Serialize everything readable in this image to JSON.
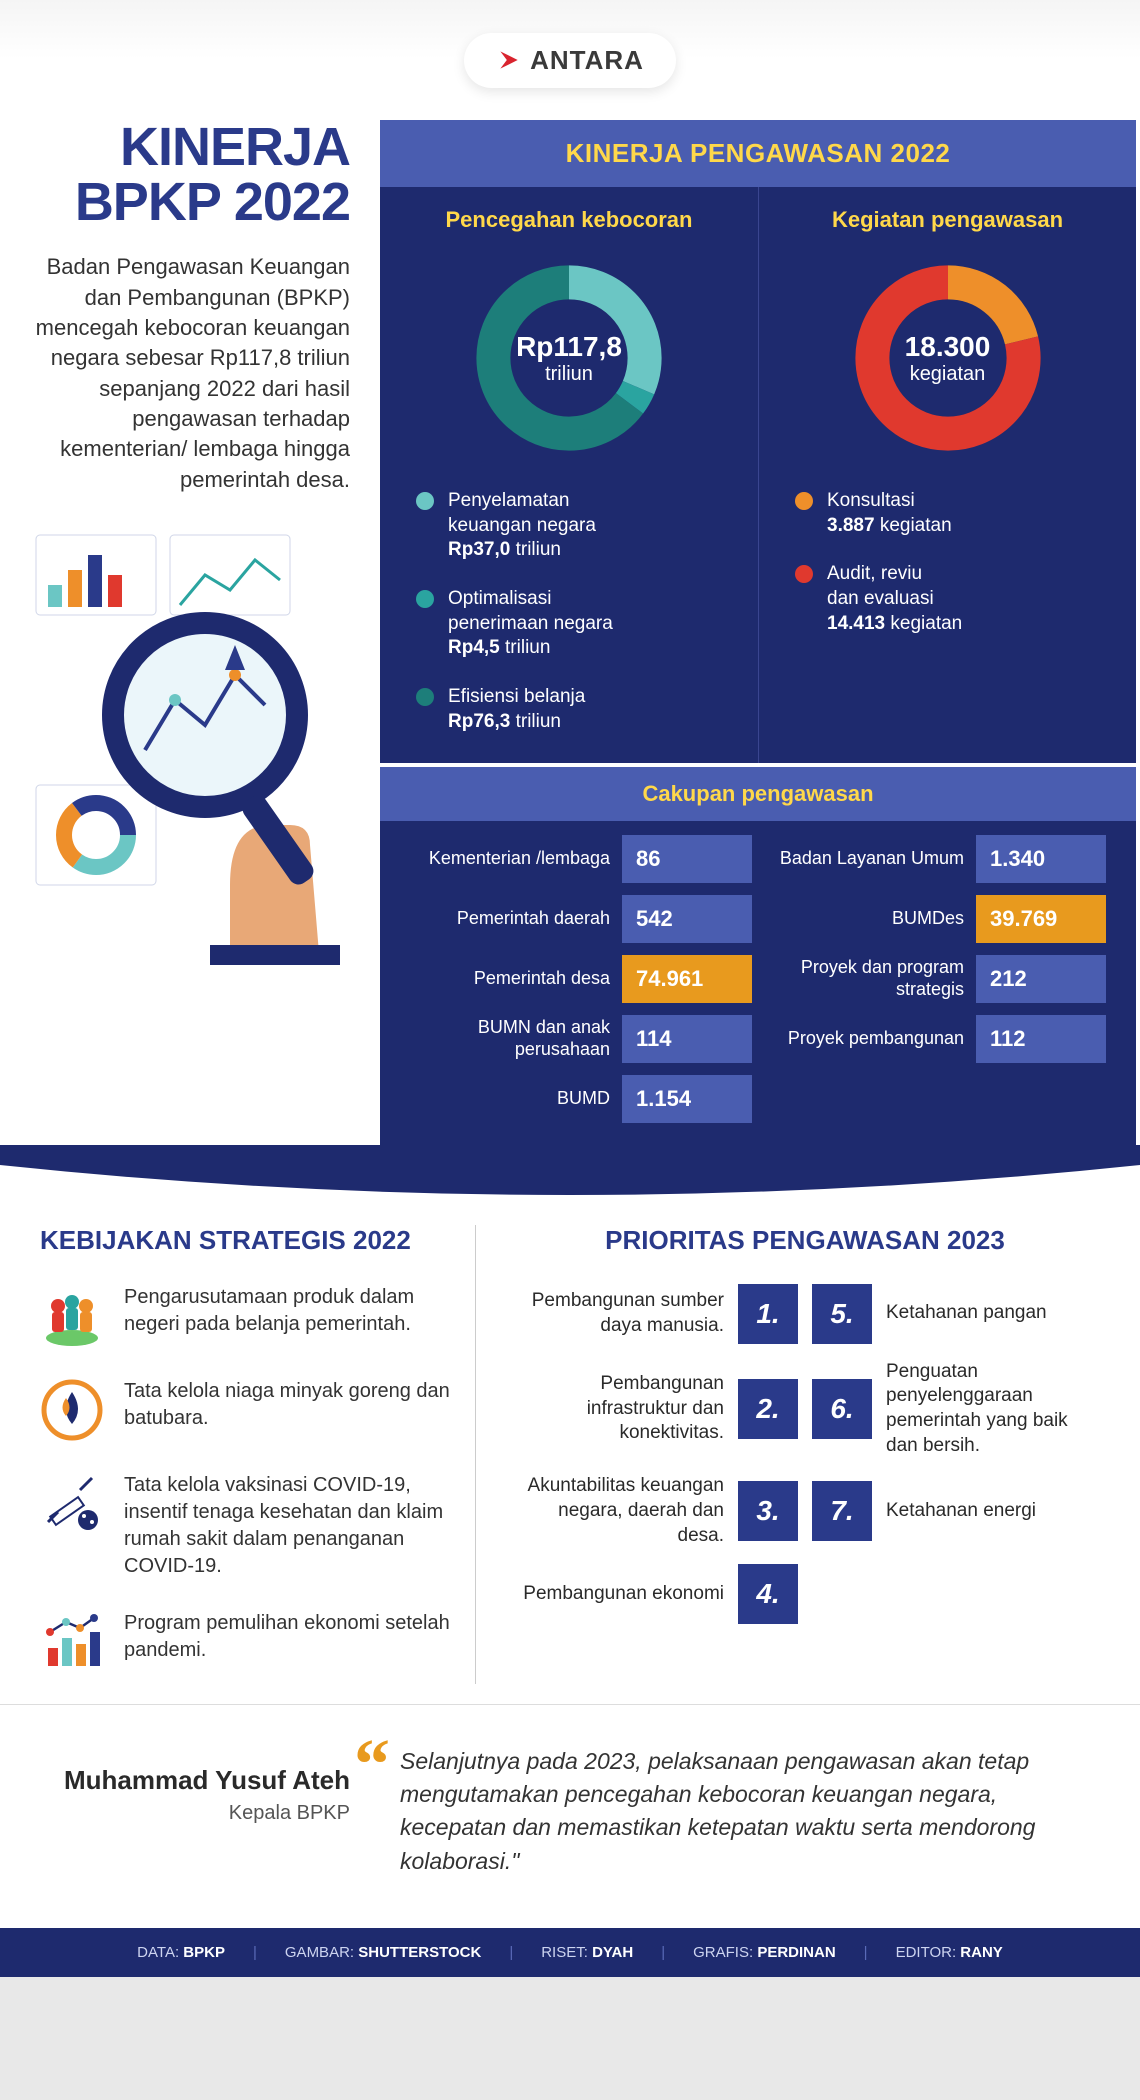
{
  "logo": {
    "brand": "ANTARA",
    "mark_color": "#d9232e"
  },
  "colors": {
    "deep_blue": "#1e2a6e",
    "mid_blue": "#4a5db0",
    "accent_blue": "#2a3a8a",
    "yellow": "#ffd84a",
    "orange": "#e89a1e",
    "teal_light": "#6bc6c4",
    "teal_mid": "#2aa4a0",
    "teal_dark": "#1d7e7a",
    "red": "#e0392e",
    "donut_orange": "#ee8f2a"
  },
  "header": {
    "title_l1": "KINERJA",
    "title_l2": "BPKP 2022",
    "intro": "Badan Pengawasan Keuangan dan Pembangunan (BPKP) mencegah kebocoran keuangan negara sebesar Rp117,8 triliun sepanjang 2022 dari hasil pengawasan terhadap kementerian/ lembaga hingga pemerintah desa."
  },
  "panel": {
    "title": "KINERJA PENGAWASAN 2022",
    "left": {
      "title": "Pencegahan kebocoran",
      "center_big": "Rp117,8",
      "center_small": "triliun",
      "donut": {
        "segments": [
          {
            "value": 37.0,
            "color": "#6bc6c4"
          },
          {
            "value": 4.5,
            "color": "#2aa4a0"
          },
          {
            "value": 76.3,
            "color": "#1d7e7a"
          }
        ],
        "total": 117.8,
        "stroke": 34
      },
      "items": [
        {
          "dot": "#6bc6c4",
          "t1": "Penyelamatan",
          "t2": "keuangan negara",
          "val": "Rp37,0",
          "unit": "triliun"
        },
        {
          "dot": "#2aa4a0",
          "t1": "Optimalisasi",
          "t2": "penerimaan negara",
          "val": "Rp4,5",
          "unit": "triliun"
        },
        {
          "dot": "#1d7e7a",
          "t1": "Efisiensi belanja",
          "t2": "",
          "val": "Rp76,3",
          "unit": "triliun"
        }
      ]
    },
    "right": {
      "title": "Kegiatan pengawasan",
      "center_big": "18.300",
      "center_small": "kegiatan",
      "donut": {
        "segments": [
          {
            "value": 3887,
            "color": "#ee8f2a"
          },
          {
            "value": 14413,
            "color": "#e0392e"
          }
        ],
        "total": 18300,
        "stroke": 34
      },
      "items": [
        {
          "dot": "#ee8f2a",
          "t1": "Konsultasi",
          "t2": "",
          "val": "3.887",
          "unit": "kegiatan"
        },
        {
          "dot": "#e0392e",
          "t1": "Audit, reviu",
          "t2": "dan evaluasi",
          "val": "14.413",
          "unit": "kegiatan"
        }
      ]
    }
  },
  "scope": {
    "title": "Cakupan pengawasan",
    "rows": [
      {
        "l": "Kementerian /lembaga",
        "lv": "86",
        "lh": false,
        "r": "Badan Layanan Umum",
        "rv": "1.340",
        "rh": false
      },
      {
        "l": "Pemerintah daerah",
        "lv": "542",
        "lh": false,
        "r": "BUMDes",
        "rv": "39.769",
        "rh": true
      },
      {
        "l": "Pemerintah desa",
        "lv": "74.961",
        "lh": true,
        "r": "Proyek dan program strategis",
        "rv": "212",
        "rh": false
      },
      {
        "l": "BUMN dan anak perusahaan",
        "lv": "114",
        "lh": false,
        "r": "Proyek pembangunan",
        "rv": "112",
        "rh": false
      },
      {
        "l": "BUMD",
        "lv": "1.154",
        "lh": false,
        "r": "",
        "rv": "",
        "rh": false
      }
    ]
  },
  "policies": {
    "title": "KEBIJAKAN STRATEGIS 2022",
    "items": [
      {
        "text": "Pengarusutamaan produk dalam negeri pada belanja pemerintah."
      },
      {
        "text": "Tata kelola niaga minyak goreng dan batubara."
      },
      {
        "text": "Tata kelola vaksinasi COVID-19, insentif tenaga kesehatan dan klaim rumah sakit dalam penanganan COVID-19."
      },
      {
        "text": "Program pemulihan ekonomi setelah pandemi."
      }
    ]
  },
  "priorities": {
    "title": "PRIORITAS PENGAWASAN 2023",
    "rows": [
      {
        "l": "Pembangunan sumber daya manusia.",
        "n1": "1.",
        "n2": "5.",
        "r": "Ketahanan pangan"
      },
      {
        "l": "Pembangunan infrastruktur dan konektivitas.",
        "n1": "2.",
        "n2": "6.",
        "r": "Penguatan penyelenggaraan pemerintah yang baik dan bersih."
      },
      {
        "l": "Akuntabilitas keuangan negara, daerah dan desa.",
        "n1": "3.",
        "n2": "7.",
        "r": "Ketahanan energi"
      },
      {
        "l": "Pembangunan ekonomi",
        "n1": "4.",
        "n2": "",
        "r": ""
      }
    ]
  },
  "quote": {
    "name": "Muhammad Yusuf Ateh",
    "role": "Kepala BPKP",
    "text": "Selanjutnya pada 2023, pelaksanaan pengawasan akan tetap mengutamakan pencegahan kebocoran keuangan negara, kecepatan dan memastikan ketepatan waktu serta mendorong kolaborasi.\""
  },
  "footer": {
    "pairs": [
      {
        "k": "DATA:",
        "v": "BPKP"
      },
      {
        "k": "GAMBAR:",
        "v": "SHUTTERSTOCK"
      },
      {
        "k": "RISET:",
        "v": "DYAH"
      },
      {
        "k": "GRAFIS:",
        "v": "PERDINAN"
      },
      {
        "k": "EDITOR:",
        "v": "RANY"
      }
    ]
  }
}
